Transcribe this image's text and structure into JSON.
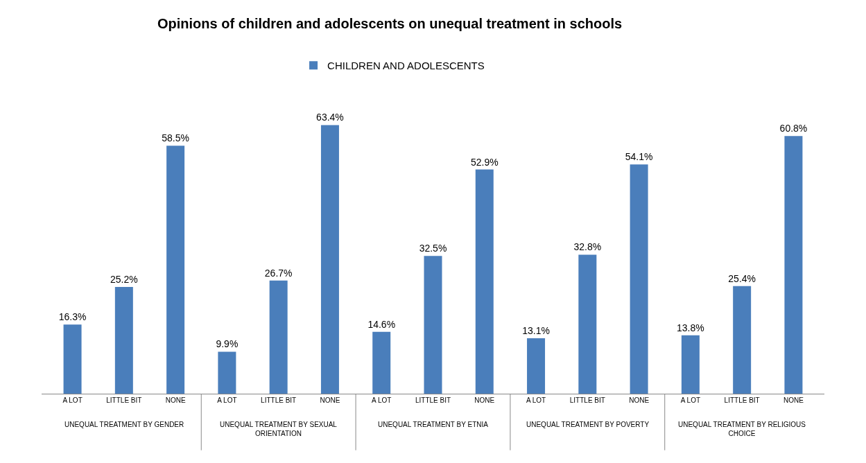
{
  "chart_data": {
    "type": "bar",
    "title": "Opinions of children and adolescents on unequal treatment in schools",
    "categories": [
      "A LOT",
      "LITTLE BIT",
      "NONE",
      "A LOT",
      "LITTLE BIT",
      "NONE",
      "A LOT",
      "LITTLE BIT",
      "NONE",
      "A LOT",
      "LITTLE BIT",
      "NONE",
      "A LOT",
      "LITTLE BIT",
      "NONE"
    ],
    "series": [
      {
        "name": "CHILDREN AND ADOLESCENTS",
        "color": "#4a7ebb",
        "values": [
          16.3,
          25.2,
          58.5,
          9.9,
          26.7,
          63.4,
          14.6,
          32.5,
          52.9,
          13.1,
          32.8,
          54.1,
          13.8,
          25.4,
          60.8
        ],
        "value_labels": [
          "16.3%",
          "25.2%",
          "58.5%",
          "9.9%",
          "26.7%",
          "63.4%",
          "14.6%",
          "32.5%",
          "52.9%",
          "13.1%",
          "32.8%",
          "54.1%",
          "13.8%",
          "25.4%",
          "60.8%"
        ]
      }
    ],
    "annotations": [
      "UNEQUAL TREATMENT BY GENDER",
      "UNEQUAL TREATMENT BY SEXUAL ORIENTATION",
      "UNEQUAL TREATMENT BY ETNIA",
      "UNEQUAL TREATMENT BY POVERTY",
      "UNEQUAL TREATMENT BY RELIGIOUS CHOICE"
    ],
    "legend": "top"
  }
}
